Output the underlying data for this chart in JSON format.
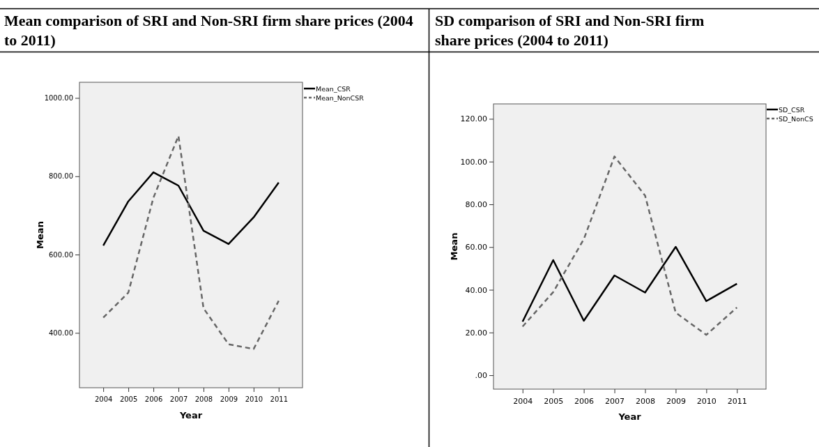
{
  "chart_data": [
    {
      "type": "line",
      "title": "Mean comparison of SRI and Non-SRI firm share prices (2004 to 2011)",
      "xlabel": "Year",
      "ylabel": "Mean",
      "categories": [
        "2004",
        "2005",
        "2006",
        "2007",
        "2008",
        "2009",
        "2010",
        "2011"
      ],
      "ylim": [
        260,
        1040
      ],
      "yticks": [
        {
          "value": 400,
          "label": "400.00"
        },
        {
          "value": 600,
          "label": "600.00"
        },
        {
          "value": 800,
          "label": "800.00"
        },
        {
          "value": 1000,
          "label": "1000.00"
        }
      ],
      "grid": false,
      "legend": "top right",
      "marker": "none",
      "series": [
        {
          "name": "Mean_CSR",
          "color": "#000000",
          "line_style": "solid",
          "values": [
            623,
            736,
            810,
            776,
            661,
            627,
            695,
            784
          ]
        },
        {
          "name": "Mean_NonCSR",
          "color": "#666666",
          "line_style": "dashed",
          "values": [
            439,
            503,
            745,
            903,
            463,
            371,
            359,
            482
          ]
        }
      ]
    },
    {
      "type": "line",
      "title": "SD comparison of SRI and Non-SRI firm share prices (2004 to 2011)",
      "xlabel": "Year",
      "ylabel": "Mean",
      "categories": [
        "2004",
        "2005",
        "2006",
        "2007",
        "2008",
        "2009",
        "2010",
        "2011"
      ],
      "ylim": [
        -6.5,
        127
      ],
      "yticks": [
        {
          "value": 0,
          "label": ".00"
        },
        {
          "value": 20,
          "label": "20.00"
        },
        {
          "value": 40,
          "label": "40.00"
        },
        {
          "value": 60,
          "label": "60.00"
        },
        {
          "value": 80,
          "label": "80.00"
        },
        {
          "value": 100,
          "label": "100.00"
        },
        {
          "value": 120,
          "label": "120.00"
        }
      ],
      "grid": false,
      "legend": "top right",
      "marker": "none",
      "series": [
        {
          "name": "SD_CSR",
          "color": "#000000",
          "line_style": "solid",
          "values": [
            25.1,
            53.9,
            25.5,
            46.7,
            38.7,
            60.1,
            34.7,
            42.8
          ]
        },
        {
          "name": "SD_NonCS",
          "color": "#666666",
          "line_style": "dashed",
          "values": [
            22.8,
            38.9,
            63.7,
            102.4,
            84.1,
            29.3,
            18.9,
            31.7
          ]
        }
      ]
    }
  ]
}
